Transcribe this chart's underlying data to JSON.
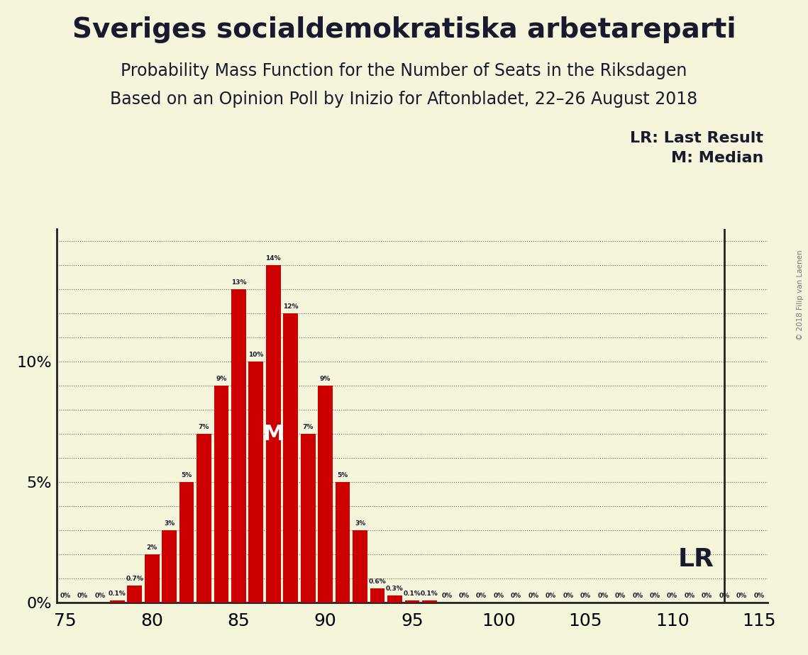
{
  "title1": "Sveriges socialdemokratiska arbetareparti",
  "title2": "Probability Mass Function for the Number of Seats in the Riksdagen",
  "title3": "Based on an Opinion Poll by Inizio for Aftonbladet, 22–26 August 2018",
  "copyright": "© 2018 Filip van Laenen",
  "seats": [
    75,
    76,
    77,
    78,
    79,
    80,
    81,
    82,
    83,
    84,
    85,
    86,
    87,
    88,
    89,
    90,
    91,
    92,
    93,
    94,
    95,
    96,
    97,
    98,
    99,
    100,
    101,
    102,
    103,
    104,
    105,
    106,
    107,
    108,
    109,
    110,
    111,
    112,
    113,
    114,
    115
  ],
  "probs": [
    0.0,
    0.0,
    0.0,
    0.1,
    0.7,
    2.0,
    3.0,
    5.0,
    7.0,
    9.0,
    13.0,
    10.0,
    14.0,
    12.0,
    7.0,
    9.0,
    5.0,
    3.0,
    0.6,
    0.3,
    0.1,
    0.1,
    0.0,
    0.0,
    0.0,
    0.0,
    0.0,
    0.0,
    0.0,
    0.0,
    0.0,
    0.0,
    0.0,
    0.0,
    0.0,
    0.0,
    0.0,
    0.0,
    0.0,
    0.0,
    0.0
  ],
  "bar_color": "#cc0000",
  "bg_color": "#f5f5dc",
  "text_color": "#1a1a2e",
  "lr_seat": 113,
  "median_seat": 87,
  "lr_label": "LR",
  "legend_lr": "LR: Last Result",
  "legend_m": "M: Median",
  "ylim_max": 15.5,
  "xlim": [
    74.5,
    115.5
  ],
  "xticks": [
    75,
    80,
    85,
    90,
    95,
    100,
    105,
    110,
    115
  ]
}
